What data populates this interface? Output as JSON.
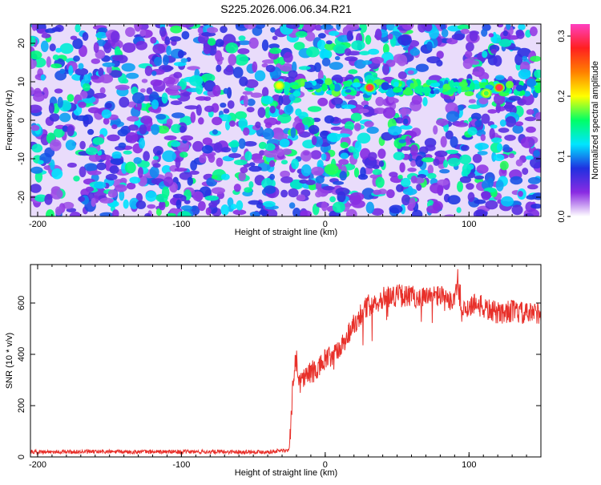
{
  "title": "S225.2026.006.06.34.R21",
  "colors": {
    "background": "#ffffff",
    "snr_line": "#e8302a",
    "spectrogram_base": "#7a2ee8",
    "spectrogram_light": "#e9dcfb",
    "spectrogram_mid": "#2a3ce0",
    "spectrogram_hot": "#00d8d0"
  },
  "chart_data": [
    {
      "type": "heatmap",
      "title": "S225.2026.006.06.34.R21",
      "xlabel": "Height of straight line (km)",
      "ylabel": "Frequency (Hz)",
      "xlim": [
        -205,
        150
      ],
      "ylim": [
        -25,
        25
      ],
      "x_ticks": [
        "-200",
        "-100",
        "0",
        "100"
      ],
      "x_tick_values": [
        -200,
        -100,
        0,
        100
      ],
      "y_ticks": [
        "20",
        "10",
        "0",
        "-10",
        "-20"
      ],
      "y_tick_values": [
        20,
        10,
        0,
        -10,
        -20
      ],
      "colorbar": {
        "label": "Normalized spectral amplitude",
        "range": [
          0.0,
          0.32
        ],
        "ticks": [
          "0.0",
          "0.1",
          "0.2",
          "0.3"
        ],
        "tick_values": [
          0.0,
          0.1,
          0.2,
          0.3
        ],
        "colors": [
          "#ffffff",
          "#8a2be2",
          "#2030e0",
          "#00e5ff",
          "#00ff66",
          "#ffff00",
          "#ff8000",
          "#ff2020",
          "#ff40c0"
        ]
      },
      "signal_band": {
        "frequency": 8.5,
        "x_start": -33,
        "x_end": 150
      },
      "peaks": [
        {
          "x": 31,
          "y": 8.5,
          "value": 0.3
        },
        {
          "x": 121,
          "y": 8.5,
          "value": 0.3
        },
        {
          "x": -32,
          "y": 9,
          "value": 0.2
        },
        {
          "x": 112,
          "y": 7,
          "value": 0.17
        }
      ]
    },
    {
      "type": "line",
      "xlabel": "Height of straight line (km)",
      "ylabel": "SNR (10 * v/v)",
      "xlim": [
        -205,
        150
      ],
      "ylim": [
        0,
        750
      ],
      "x_ticks": [
        "-200",
        "-100",
        "0",
        "100"
      ],
      "x_tick_values": [
        -200,
        -100,
        0,
        100
      ],
      "y_ticks": [
        "0",
        "200",
        "400",
        "600"
      ],
      "y_tick_values": [
        0,
        200,
        400,
        600
      ],
      "series": [
        {
          "x": [
            -205,
            -180,
            -160,
            -140,
            -120,
            -100,
            -80,
            -60,
            -40,
            -30,
            -25,
            -22,
            -20,
            -18,
            -15,
            -10,
            -5,
            0,
            5,
            10,
            15,
            20,
            25,
            30,
            40,
            50,
            60,
            70,
            80,
            85,
            90,
            92,
            95,
            100,
            105,
            110,
            120,
            130,
            140,
            150
          ],
          "values": [
            20,
            20,
            20,
            20,
            20,
            20,
            20,
            20,
            20,
            25,
            25,
            320,
            380,
            290,
            310,
            330,
            340,
            380,
            390,
            420,
            470,
            520,
            560,
            590,
            620,
            630,
            625,
            620,
            630,
            600,
            620,
            680,
            560,
            590,
            600,
            580,
            560,
            570,
            555,
            565
          ]
        }
      ]
    }
  ]
}
